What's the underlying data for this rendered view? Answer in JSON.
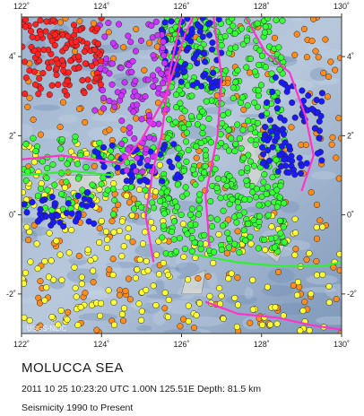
{
  "map": {
    "lon_range": [
      122,
      130
    ],
    "lat_range": [
      -3,
      5
    ],
    "x_ticks": [
      "122˚",
      "124˚",
      "126˚",
      "128˚",
      "130˚"
    ],
    "y_ticks": [
      "4˚",
      "2˚",
      "0˚",
      "-2˚"
    ],
    "y_tick_values": [
      4,
      2,
      0,
      -2
    ],
    "credit": "USGS-NEIC",
    "background": {
      "ocean": "#8fa8c4",
      "deep": "#5f7fa8",
      "land": "#e9e4d0"
    },
    "depth_classes": [
      {
        "name": "shallow",
        "color": "#ff8c1a"
      },
      {
        "name": "shallow-mid",
        "color": "#ffff33"
      },
      {
        "name": "intermediate",
        "color": "#33ff33"
      },
      {
        "name": "deep",
        "color": "#1a1aff"
      },
      {
        "name": "deeper",
        "color": "#cc33ff"
      },
      {
        "name": "deepest",
        "color": "#ff2222"
      }
    ],
    "plate_boundary_color": "#ff33cc",
    "fault_color": "#33ee33"
  },
  "caption": {
    "region": "MOLUCCA SEA",
    "event": "2011 10 25 10:23:20 UTC 1.00N 125.51E Depth: 81.5 km",
    "subtitle": "Seismicity 1990 to Present"
  }
}
